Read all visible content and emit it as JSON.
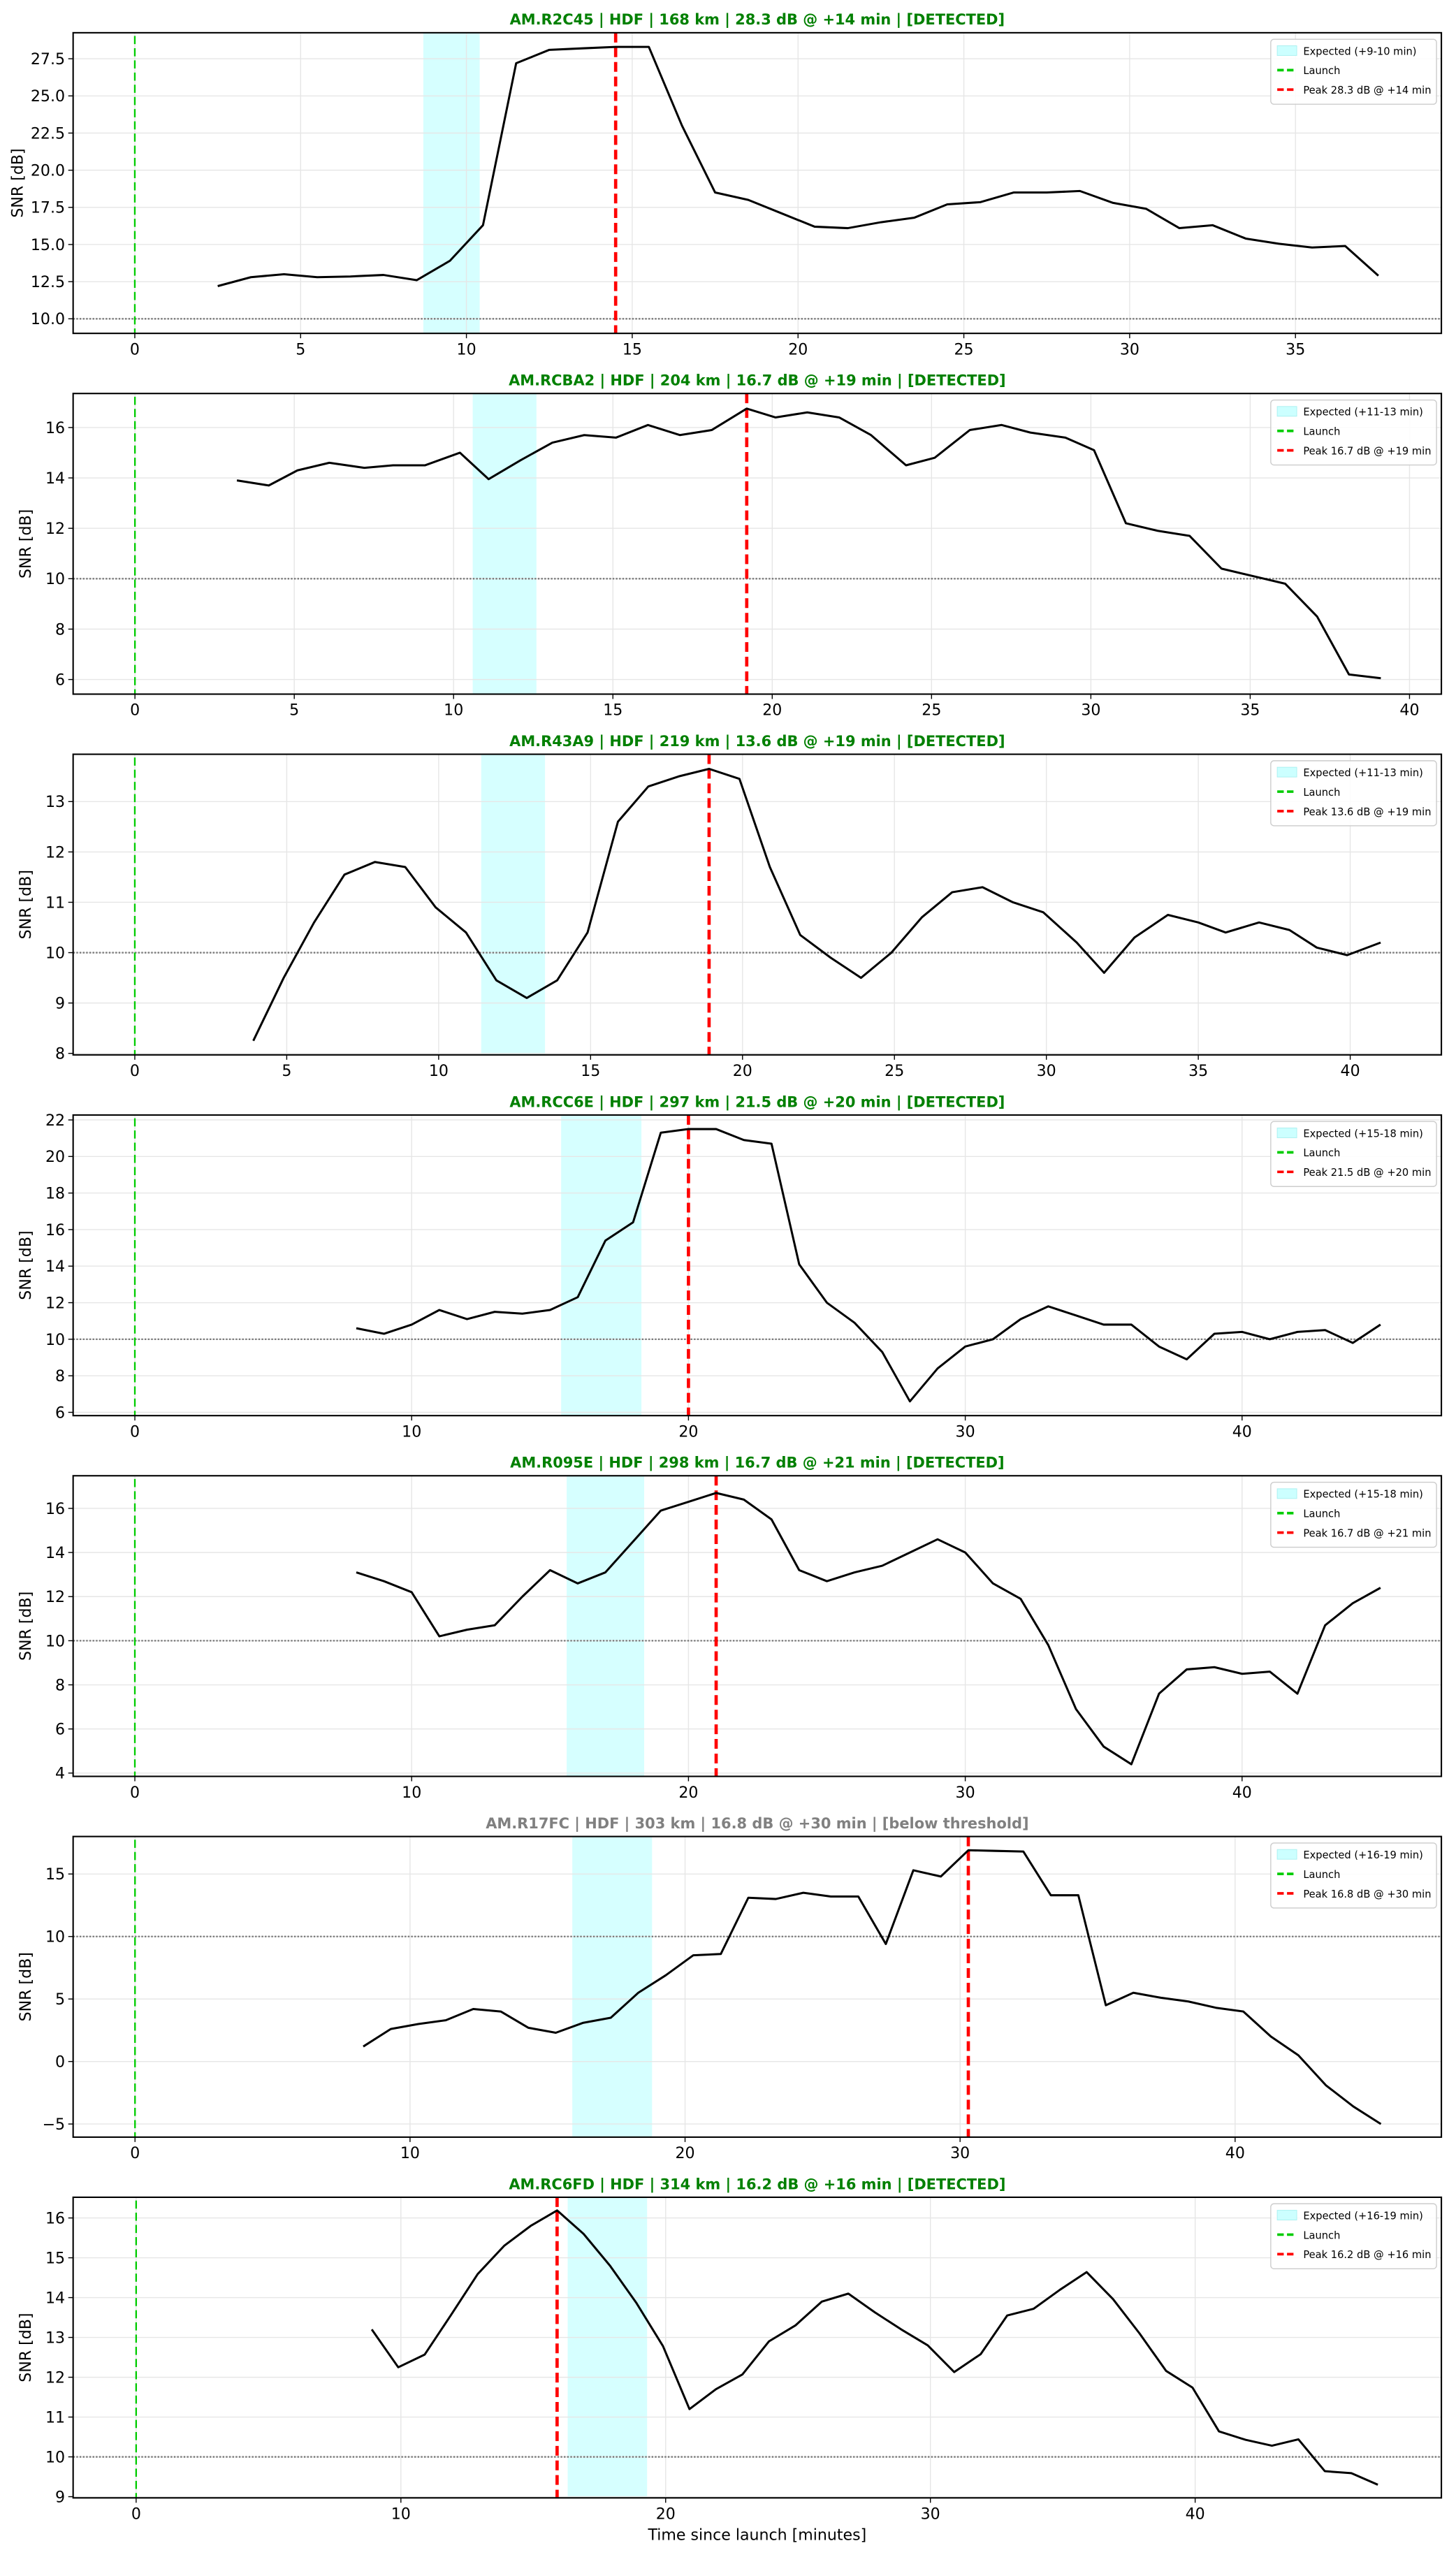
{
  "figure": {
    "xlabel": "Time since launch [minutes]",
    "ylabel": "SNR [dB]",
    "colors": {
      "detected_title": "#008000",
      "below_title": "#808080",
      "line": "#000000",
      "launch": "#00cc00",
      "peak": "#ff0000",
      "expected": "#ccffff",
      "threshold": "#777777",
      "grid": "#e6e6e6"
    }
  },
  "chart_data": [
    {
      "type": "line",
      "title": "AM.R2C45 | HDF | 168 km | 28.3 dB @ +14 min | [DETECTED]",
      "status": "detected",
      "xlim": [
        -1.86,
        39.4
      ],
      "ylim": [
        9.02,
        29.25
      ],
      "xticks": [
        0,
        5,
        10,
        15,
        20,
        25,
        30,
        35
      ],
      "xtick_labels": [
        "0",
        "5",
        "10",
        "15",
        "20",
        "25",
        "30",
        "35"
      ],
      "yticks": [
        10,
        12.5,
        15,
        17.5,
        20,
        22.5,
        25,
        27.5
      ],
      "ytick_labels": [
        "10.0",
        "12.5",
        "15.0",
        "17.5",
        "20.0",
        "22.5",
        "25.0",
        "27.5"
      ],
      "grid": true,
      "threshold": 10,
      "launch_x": 0,
      "peak_x": 14.5,
      "expected_range": [
        8.7,
        10.4
      ],
      "legend": {
        "placement": "top-right",
        "entries": [
          "Expected (+9-10 min)",
          "Launch",
          "Peak 28.3 dB @ +14 min"
        ]
      },
      "x": [
        2.5,
        3.5,
        4.5,
        5.5,
        6.5,
        7.5,
        8.5,
        9.5,
        10.5,
        11.5,
        12.5,
        13.5,
        14.5,
        15.5,
        16.5,
        17.5,
        18.5,
        19.5,
        20.5,
        21.5,
        22.5,
        23.5,
        24.5,
        25.5,
        26.5,
        27.5,
        28.5,
        29.5,
        30.5,
        31.5,
        32.5,
        33.5,
        34.5,
        35.5,
        36.5,
        37.5
      ],
      "y": [
        12.2,
        12.8,
        13.0,
        12.8,
        12.85,
        12.95,
        12.6,
        13.9,
        16.3,
        27.2,
        28.1,
        28.2,
        28.3,
        28.3,
        23.0,
        18.5,
        18.0,
        17.1,
        16.2,
        16.1,
        16.5,
        16.8,
        17.7,
        17.85,
        18.5,
        18.5,
        18.6,
        17.8,
        17.4,
        16.1,
        16.3,
        15.4,
        15.05,
        14.8,
        14.9,
        12.9
      ]
    },
    {
      "type": "line",
      "title": "AM.RCBA2 | HDF | 204 km | 16.7 dB @ +19 min | [DETECTED]",
      "status": "detected",
      "xlim": [
        -1.94,
        41.0
      ],
      "ylim": [
        5.42,
        17.35
      ],
      "xticks": [
        0,
        5,
        10,
        15,
        20,
        25,
        30,
        35,
        40
      ],
      "xtick_labels": [
        "0",
        "5",
        "10",
        "15",
        "20",
        "25",
        "30",
        "35",
        "40"
      ],
      "yticks": [
        6,
        8,
        10,
        12,
        14,
        16
      ],
      "ytick_labels": [
        "6",
        "8",
        "10",
        "12",
        "14",
        "16"
      ],
      "grid": true,
      "threshold": 10,
      "launch_x": 0,
      "peak_x": 19.2,
      "expected_range": [
        10.6,
        12.6
      ],
      "legend": {
        "placement": "top-right",
        "entries": [
          "Expected (+11-13 min)",
          "Launch",
          "Peak 16.7 dB @ +19 min"
        ]
      },
      "x": [
        3.2,
        4.2,
        5.1,
        6.1,
        7.2,
        8.1,
        9.1,
        10.2,
        11.1,
        12.1,
        13.1,
        14.1,
        15.1,
        16.1,
        17.1,
        18.1,
        19.2,
        20.1,
        21.1,
        22.1,
        23.1,
        24.2,
        25.1,
        26.2,
        27.2,
        28.1,
        29.2,
        30.1,
        31.1,
        32.1,
        33.1,
        34.1,
        35.1,
        36.1,
        37.1,
        38.1,
        39.1
      ],
      "y": [
        13.9,
        13.7,
        14.3,
        14.6,
        14.4,
        14.5,
        14.5,
        15.0,
        13.95,
        14.7,
        15.4,
        15.7,
        15.6,
        16.1,
        15.7,
        15.9,
        16.75,
        16.4,
        16.6,
        16.4,
        15.7,
        14.5,
        14.8,
        15.9,
        16.1,
        15.8,
        15.6,
        15.1,
        12.2,
        11.9,
        11.7,
        10.4,
        10.1,
        9.8,
        8.5,
        6.2,
        6.05
      ]
    },
    {
      "type": "line",
      "title": "AM.R43A9 | HDF | 219 km | 13.6 dB @ +19 min | [DETECTED]",
      "status": "detected",
      "xlim": [
        -2.03,
        43.0
      ],
      "ylim": [
        7.97,
        13.94
      ],
      "xticks": [
        0,
        5,
        10,
        15,
        20,
        25,
        30,
        35,
        40
      ],
      "xtick_labels": [
        "0",
        "5",
        "10",
        "15",
        "20",
        "25",
        "30",
        "35",
        "40"
      ],
      "yticks": [
        8,
        9,
        10,
        11,
        12,
        13
      ],
      "ytick_labels": [
        "8",
        "9",
        "10",
        "11",
        "12",
        "13"
      ],
      "grid": true,
      "threshold": 10,
      "launch_x": 0,
      "peak_x": 18.9,
      "expected_range": [
        11.4,
        13.5
      ],
      "legend": {
        "placement": "top-right",
        "entries": [
          "Expected (+11-13 min)",
          "Launch",
          "Peak 13.6 dB @ +19 min"
        ]
      },
      "x": [
        3.9,
        4.9,
        5.9,
        6.9,
        7.9,
        8.9,
        9.9,
        10.9,
        11.9,
        12.9,
        13.9,
        14.9,
        15.9,
        16.9,
        17.9,
        18.9,
        19.9,
        20.9,
        21.9,
        22.9,
        23.9,
        24.9,
        25.9,
        26.9,
        27.9,
        28.9,
        29.9,
        31.0,
        31.9,
        32.9,
        34.0,
        35.0,
        35.9,
        37.0,
        38.0,
        38.9,
        39.9,
        41.0
      ],
      "y": [
        8.25,
        9.5,
        10.6,
        11.55,
        11.8,
        11.7,
        10.9,
        10.4,
        9.45,
        9.1,
        9.45,
        10.4,
        12.6,
        13.3,
        13.5,
        13.65,
        13.45,
        11.7,
        10.35,
        9.9,
        9.5,
        10.0,
        10.7,
        11.2,
        11.3,
        11.0,
        10.8,
        10.2,
        9.6,
        10.3,
        10.75,
        10.6,
        10.4,
        10.6,
        10.45,
        10.1,
        9.95,
        10.2
      ]
    },
    {
      "type": "line",
      "title": "AM.RCC6E | HDF | 297 km | 21.5 dB @ +20 min | [DETECTED]",
      "status": "detected",
      "xlim": [
        -2.23,
        47.2
      ],
      "ylim": [
        5.82,
        22.27
      ],
      "xticks": [
        0,
        10,
        20,
        30,
        40
      ],
      "xtick_labels": [
        "0",
        "10",
        "20",
        "30",
        "40"
      ],
      "yticks": [
        6,
        8,
        10,
        12,
        14,
        16,
        18,
        20,
        22
      ],
      "ytick_labels": [
        "6",
        "8",
        "10",
        "12",
        "14",
        "16",
        "18",
        "20",
        "22"
      ],
      "grid": true,
      "threshold": 10,
      "launch_x": 0,
      "peak_x": 20.0,
      "expected_range": [
        15.4,
        18.3
      ],
      "legend": {
        "placement": "top-right",
        "entries": [
          "Expected (+15-18 min)",
          "Launch",
          "Peak 21.5 dB @ +20 min"
        ]
      },
      "x": [
        8,
        9,
        10,
        11,
        12,
        13,
        14,
        15,
        16,
        17,
        18,
        19,
        20,
        21,
        22,
        23,
        24,
        25,
        26,
        27,
        28,
        29,
        30,
        31,
        32,
        33,
        34,
        35,
        36,
        37,
        38,
        39,
        40,
        41,
        42,
        43,
        44,
        45
      ],
      "y": [
        10.6,
        10.3,
        10.8,
        11.6,
        11.1,
        11.5,
        11.4,
        11.6,
        12.3,
        15.4,
        16.4,
        21.3,
        21.5,
        21.5,
        20.9,
        20.7,
        14.1,
        12.0,
        10.9,
        9.3,
        6.6,
        8.4,
        9.6,
        10.0,
        11.1,
        11.8,
        11.3,
        10.8,
        10.8,
        9.6,
        8.9,
        10.3,
        10.4,
        10.0,
        10.4,
        10.5,
        9.8,
        10.8
      ]
    },
    {
      "type": "line",
      "title": "AM.R095E | HDF | 298 km | 16.7 dB @ +21 min | [DETECTED]",
      "status": "detected",
      "xlim": [
        -2.23,
        47.2
      ],
      "ylim": [
        3.85,
        17.48
      ],
      "xticks": [
        0,
        10,
        20,
        30,
        40
      ],
      "xtick_labels": [
        "0",
        "10",
        "20",
        "30",
        "40"
      ],
      "yticks": [
        4,
        6,
        8,
        10,
        12,
        14,
        16
      ],
      "ytick_labels": [
        "4",
        "6",
        "8",
        "10",
        "12",
        "14",
        "16"
      ],
      "grid": true,
      "threshold": 10,
      "launch_x": 0,
      "peak_x": 21.0,
      "expected_range": [
        15.6,
        18.4
      ],
      "legend": {
        "placement": "top-right",
        "entries": [
          "Expected (+15-18 min)",
          "Launch",
          "Peak 16.7 dB @ +21 min"
        ]
      },
      "x": [
        8,
        9,
        10,
        11,
        12,
        13,
        14,
        15,
        16,
        17,
        18,
        19,
        20,
        21,
        22,
        23,
        24,
        25,
        26,
        27,
        28,
        29,
        30,
        31,
        32,
        33,
        34,
        35,
        36,
        37,
        38,
        39,
        40,
        41,
        42,
        43,
        44,
        45
      ],
      "y": [
        13.1,
        12.7,
        12.2,
        10.2,
        10.5,
        10.7,
        12.0,
        13.2,
        12.6,
        13.1,
        14.5,
        15.9,
        16.3,
        16.7,
        16.4,
        15.5,
        13.2,
        12.7,
        13.1,
        13.4,
        14.0,
        14.6,
        14.0,
        12.6,
        11.9,
        9.8,
        6.9,
        5.2,
        4.4,
        7.6,
        8.7,
        8.8,
        8.5,
        8.6,
        7.6,
        10.7,
        11.7,
        12.4
      ]
    },
    {
      "type": "line",
      "title": "AM.R17FC | HDF | 303 km | 16.8 dB @ +30 min | [below threshold]",
      "status": "below",
      "xlim": [
        -2.25,
        47.5
      ],
      "ylim": [
        -6.05,
        18.0
      ],
      "xticks": [
        0,
        10,
        20,
        30,
        40
      ],
      "xtick_labels": [
        "0",
        "10",
        "20",
        "30",
        "40"
      ],
      "yticks": [
        -5,
        0,
        5,
        10,
        15
      ],
      "ytick_labels": [
        "−5",
        "0",
        "5",
        "10",
        "15"
      ],
      "grid": true,
      "threshold": 10,
      "launch_x": 0,
      "peak_x": 30.3,
      "expected_range": [
        15.9,
        18.8
      ],
      "legend": {
        "placement": "top-right",
        "entries": [
          "Expected (+16-19 min)",
          "Launch",
          "Peak 16.8 dB @ +30 min"
        ]
      },
      "x": [
        8.3,
        9.3,
        10.3,
        11.3,
        12.3,
        13.3,
        14.3,
        15.3,
        16.3,
        17.3,
        18.3,
        19.3,
        20.3,
        21.3,
        22.3,
        23.3,
        24.3,
        25.3,
        26.3,
        27.3,
        28.3,
        29.3,
        30.3,
        31.3,
        32.3,
        33.3,
        34.3,
        35.3,
        36.3,
        37.3,
        38.3,
        39.3,
        40.3,
        41.3,
        42.3,
        43.3,
        44.3,
        45.3
      ],
      "y": [
        1.2,
        2.6,
        3.0,
        3.3,
        4.2,
        4.0,
        2.7,
        2.3,
        3.1,
        3.5,
        5.5,
        6.9,
        8.5,
        8.6,
        13.1,
        13.0,
        13.5,
        13.2,
        13.2,
        9.4,
        15.3,
        14.8,
        16.9,
        16.85,
        16.8,
        13.3,
        13.3,
        4.5,
        5.5,
        5.1,
        4.8,
        4.3,
        4.0,
        2.0,
        0.5,
        -1.9,
        -3.6,
        -5.0
      ]
    },
    {
      "type": "line",
      "title": "AM.RC6FD | HDF | 314 km | 16.2 dB @ +16 min | [DETECTED]",
      "status": "detected",
      "xlim": [
        -2.38,
        49.3
      ],
      "ylim": [
        8.97,
        16.52
      ],
      "xticks": [
        0,
        10,
        20,
        30,
        40
      ],
      "xtick_labels": [
        "0",
        "10",
        "20",
        "30",
        "40"
      ],
      "yticks": [
        9,
        10,
        11,
        12,
        13,
        14,
        15,
        16
      ],
      "ytick_labels": [
        "9",
        "10",
        "11",
        "12",
        "13",
        "14",
        "15",
        "16"
      ],
      "grid": true,
      "threshold": 10,
      "launch_x": 0,
      "peak_x": 15.9,
      "expected_range": [
        16.3,
        19.3
      ],
      "legend": {
        "placement": "top-right",
        "entries": [
          "Expected (+16-19 min)",
          "Launch",
          "Peak 16.2 dB @ +16 min"
        ]
      },
      "x": [
        8.9,
        9.9,
        10.9,
        11.9,
        12.9,
        13.9,
        14.9,
        15.9,
        16.9,
        17.9,
        18.9,
        19.9,
        20.9,
        21.9,
        22.9,
        23.9,
        24.9,
        25.9,
        26.9,
        27.9,
        28.9,
        29.9,
        30.9,
        31.9,
        32.9,
        33.9,
        34.9,
        35.9,
        36.9,
        37.9,
        38.9,
        39.9,
        40.9,
        41.9,
        42.9,
        43.9,
        44.9,
        45.9,
        46.9
      ],
      "y": [
        13.2,
        12.25,
        12.57,
        13.57,
        14.59,
        15.3,
        15.8,
        16.19,
        15.6,
        14.8,
        13.86,
        12.78,
        11.2,
        11.7,
        12.07,
        12.9,
        13.3,
        13.9,
        14.1,
        13.63,
        13.2,
        12.8,
        12.13,
        12.58,
        13.55,
        13.72,
        14.2,
        14.64,
        13.96,
        13.1,
        12.16,
        11.74,
        10.64,
        10.43,
        10.28,
        10.44,
        9.64,
        9.59,
        9.3
      ]
    }
  ]
}
